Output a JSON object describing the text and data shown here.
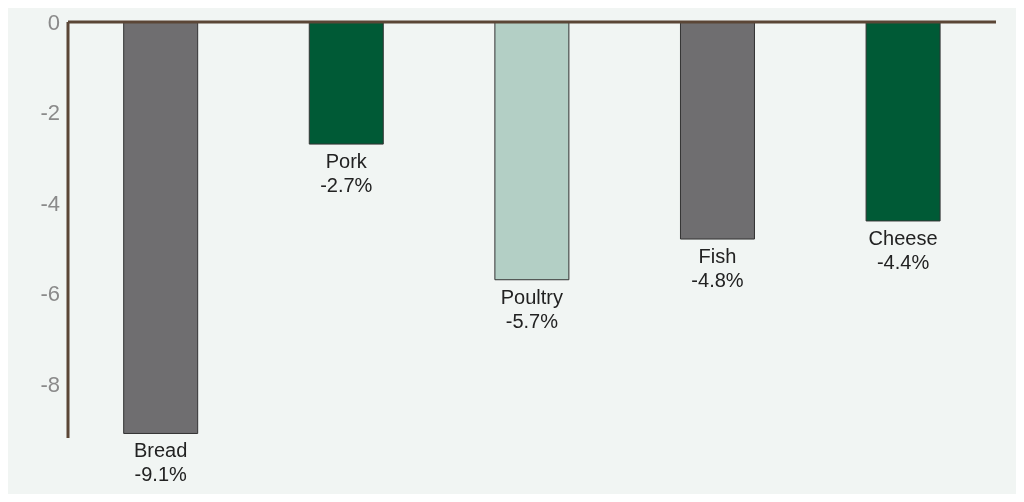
{
  "chart_data": {
    "type": "bar",
    "categories": [
      "Bread",
      "Pork",
      "Poultry",
      "Fish",
      "Cheese"
    ],
    "values": [
      -9.1,
      -2.7,
      -5.7,
      -4.8,
      -4.4
    ],
    "colors": [
      "#6f6e70",
      "#005a36",
      "#b3cfc5",
      "#6f6e70",
      "#005a36"
    ],
    "value_labels": [
      "-9.1%",
      "-2.7%",
      "-5.7%",
      "-4.8%",
      "-4.4%"
    ],
    "ylim": [
      -9.2,
      0
    ],
    "yticks": [
      0,
      -2,
      -4,
      -6,
      -8
    ],
    "grid": false,
    "tick_labels": "y"
  }
}
